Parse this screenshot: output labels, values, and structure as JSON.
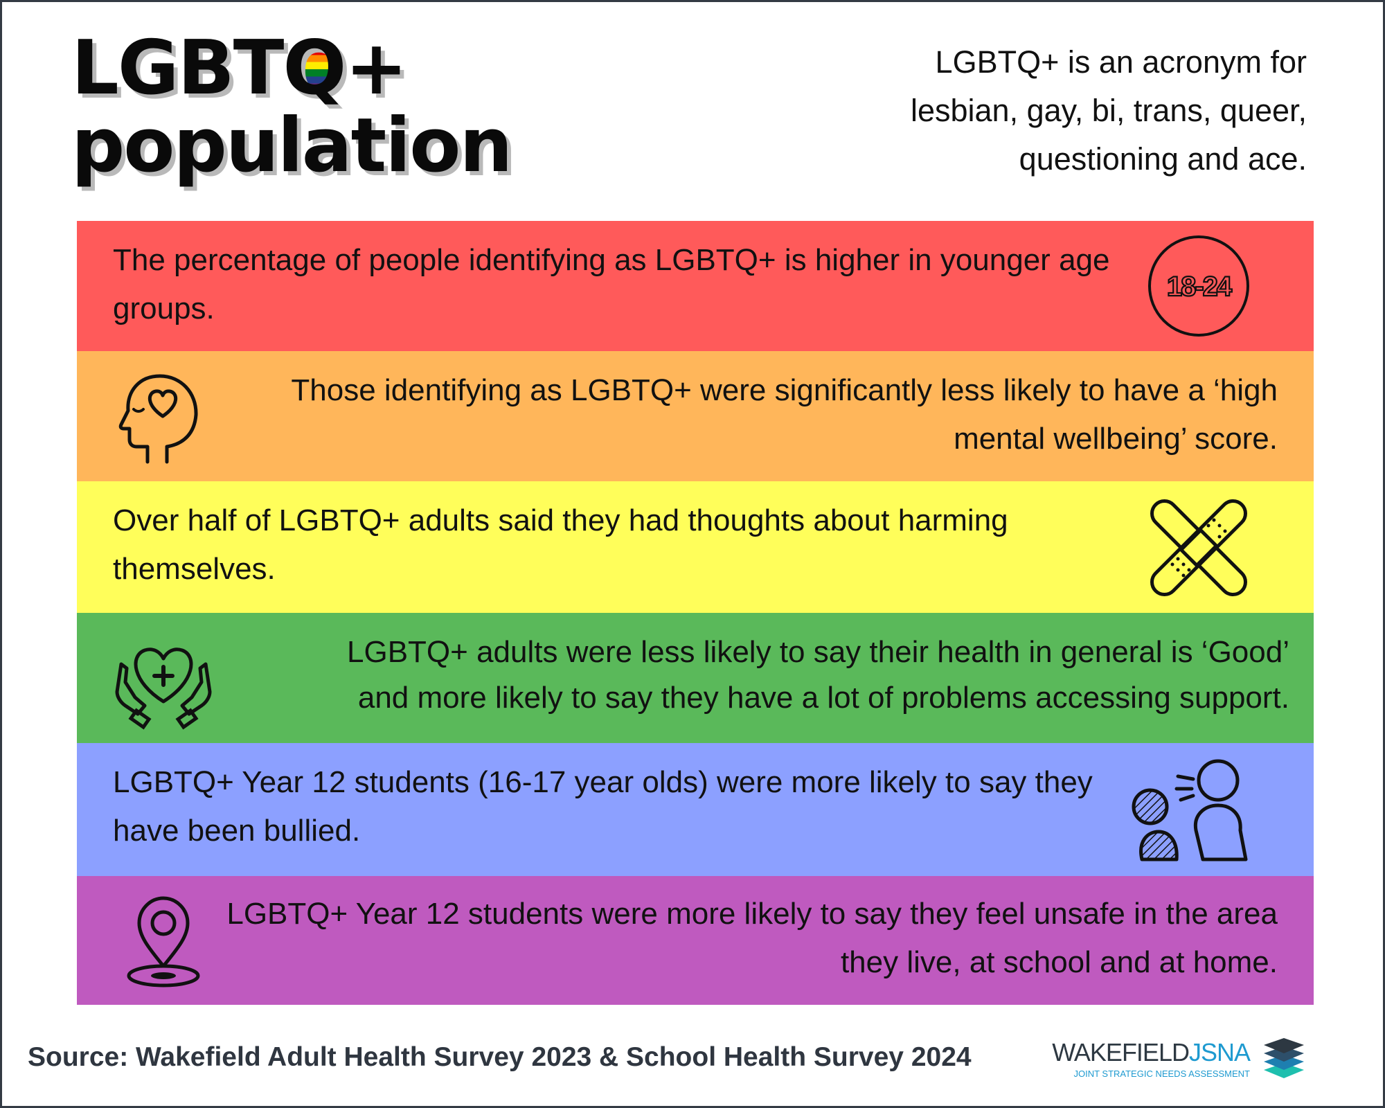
{
  "title": {
    "line1_prefix": "LGBT",
    "line1_q": "Q",
    "line1_suffix": "+",
    "line2": "population"
  },
  "acronym_note": {
    "line1": "LGBTQ+ is an acronym for",
    "line2": "lesbian, gay, bi, trans, queer,",
    "line3": "questioning and ace."
  },
  "findings": [
    {
      "text": "The percentage of people identifying as LGBTQ+ is higher in younger age groups.",
      "icon": "age-badge-icon",
      "icon_label": "18-24",
      "color": "#ff5a5a"
    },
    {
      "text": "Those identifying as LGBTQ+ were significantly less likely to have a ‘high mental wellbeing’ score.",
      "icon": "head-heart-icon",
      "color": "#ffb65a"
    },
    {
      "text": "Over half of LGBTQ+ adults said they had thoughts about harming themselves.",
      "icon": "crossed-plasters-icon",
      "color": "#fffe5a"
    },
    {
      "text_line1": "LGBTQ+ adults were less likely to say their health in general is ‘Good’",
      "text_line2": "and more likely to say they have a lot of problems accessing support.",
      "icon": "hands-heart-icon",
      "color": "#5ab95a"
    },
    {
      "text": "LGBTQ+ Year 12 students (16-17 year olds) were more likely to say they have been bullied.",
      "icon": "bullying-people-icon",
      "color": "#8ca0ff"
    },
    {
      "text": "LGBTQ+ Year 12 students were more likely to say they feel unsafe in the area they live, at school and at home.",
      "icon": "location-pin-icon",
      "color": "#bf5abf"
    }
  ],
  "source": "Source: Wakefield Adult Health Survey 2023 & School Health Survey 2024",
  "logo": {
    "word1": "WAKEFIELD",
    "word2": "JSNA",
    "subtitle": "JOINT STRATEGIC NEEDS ASSESSMENT",
    "icon": "stacked-layers-icon"
  }
}
